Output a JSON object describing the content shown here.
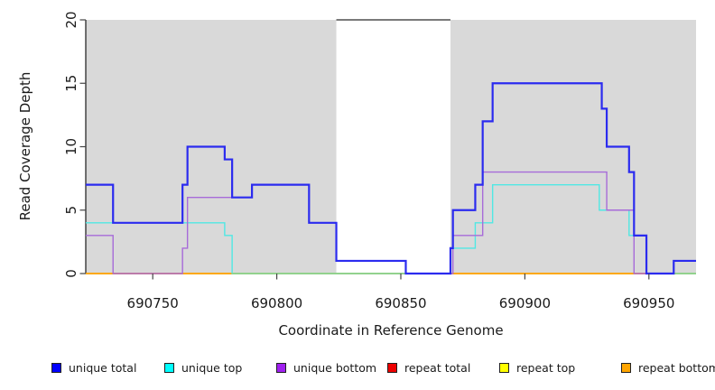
{
  "chart_data": {
    "type": "line",
    "subtype": "step-coverage",
    "title": "",
    "xlabel": "Coordinate in Reference Genome",
    "ylabel": "Read Coverage Depth",
    "xlim": [
      690723,
      690969
    ],
    "ylim": [
      0,
      20
    ],
    "x_ticks": [
      "690750",
      "690800",
      "690850",
      "690900",
      "690950"
    ],
    "x_tick_values": [
      690750,
      690800,
      690850,
      690900,
      690950
    ],
    "y_ticks": [
      "0",
      "5",
      "10",
      "15",
      "20"
    ],
    "y_tick_values": [
      0,
      5,
      10,
      15,
      20
    ],
    "grid": "off",
    "legend_position": "bottom",
    "shaded_regions": [
      {
        "x0": 690723,
        "x1": 690824,
        "color": "#d9d9d9"
      },
      {
        "x0": 690870,
        "x1": 690969,
        "color": "#d9d9d9"
      }
    ],
    "unshaded_gap": {
      "x0": 690824,
      "x1": 690870
    },
    "series": [
      {
        "name": "unique total",
        "legend_color": "#0000ff",
        "line_color": "#2b2bef",
        "line_width": 2.2,
        "points": [
          [
            690723,
            7
          ],
          [
            690734,
            4
          ],
          [
            690762,
            7
          ],
          [
            690764,
            10
          ],
          [
            690779,
            9
          ],
          [
            690782,
            6
          ],
          [
            690790,
            7
          ],
          [
            690813,
            4
          ],
          [
            690824,
            1
          ],
          [
            690852,
            0
          ],
          [
            690870,
            2
          ],
          [
            690871,
            5
          ],
          [
            690880,
            7
          ],
          [
            690883,
            12
          ],
          [
            690887,
            15
          ],
          [
            690931,
            13
          ],
          [
            690933,
            10
          ],
          [
            690942,
            8
          ],
          [
            690944,
            3
          ],
          [
            690949,
            0
          ],
          [
            690960,
            1
          ],
          [
            690969,
            1
          ]
        ]
      },
      {
        "name": "unique top",
        "legend_color": "#00ffff",
        "line_color": "#50e8e4",
        "line_width": 1.4,
        "points": [
          [
            690723,
            4
          ],
          [
            690779,
            3
          ],
          [
            690782,
            0
          ],
          [
            690870,
            2
          ],
          [
            690880,
            4
          ],
          [
            690887,
            7
          ],
          [
            690930,
            5
          ],
          [
            690942,
            3
          ],
          [
            690949,
            0
          ],
          [
            690969,
            0
          ]
        ]
      },
      {
        "name": "unique bottom",
        "legend_color": "#a020f0",
        "line_color": "#a76bd9",
        "line_width": 1.4,
        "points": [
          [
            690723,
            3
          ],
          [
            690734,
            0
          ],
          [
            690762,
            2
          ],
          [
            690764,
            6
          ],
          [
            690790,
            7
          ],
          [
            690813,
            4
          ],
          [
            690824,
            1
          ],
          [
            690852,
            0
          ],
          [
            690871,
            3
          ],
          [
            690883,
            8
          ],
          [
            690933,
            5
          ],
          [
            690944,
            0
          ],
          [
            690960,
            1
          ],
          [
            690969,
            1
          ]
        ]
      },
      {
        "name": "repeat total",
        "legend_color": "#ee0000",
        "line_color": "#e00000",
        "line_width": 1.4,
        "points": [
          [
            690723,
            0
          ],
          [
            690969,
            0
          ]
        ]
      },
      {
        "name": "repeat top",
        "legend_color": "#ffff00",
        "line_color": "#ffee00",
        "line_width": 1.4,
        "points": [
          [
            690723,
            0
          ],
          [
            690969,
            0
          ]
        ]
      },
      {
        "name": "repeat bottom",
        "legend_color": "#ffa500",
        "line_color": "#ffa500",
        "line_width": 1.6,
        "points": [
          [
            690723,
            0
          ],
          [
            690969,
            0
          ]
        ]
      }
    ],
    "zero_line_overlap_segments": {
      "comment": "pale green segments visible on the baseline where top-strand lines overlap at depth 0",
      "color": "#8cd492",
      "segments": [
        [
          690782,
          690870
        ],
        [
          690960,
          690969
        ]
      ]
    }
  },
  "legend": {
    "items": [
      {
        "label": "unique total",
        "color": "#0000ff"
      },
      {
        "label": "unique top",
        "color": "#00ffff"
      },
      {
        "label": "unique bottom",
        "color": "#a020f0"
      },
      {
        "label": "repeat total",
        "color": "#ee0000"
      },
      {
        "label": "repeat top",
        "color": "#ffff00"
      },
      {
        "label": "repeat bottom",
        "color": "#ffa500"
      }
    ]
  }
}
